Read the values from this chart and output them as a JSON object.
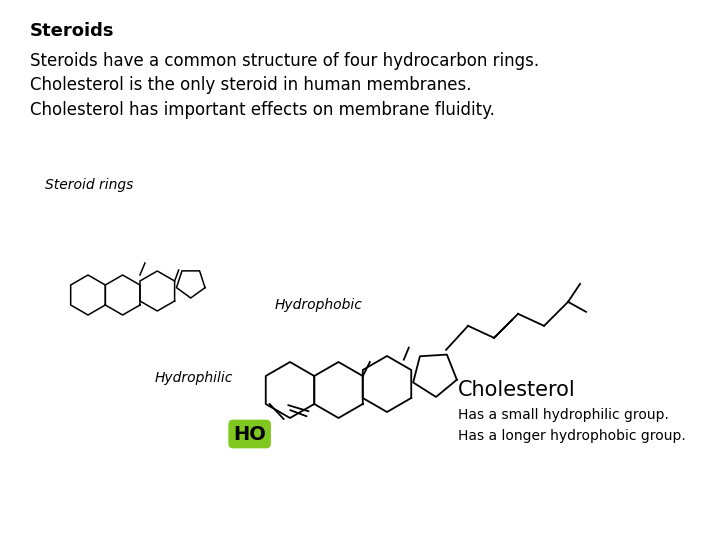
{
  "title": "Steroids",
  "body_text": "Steroids have a common structure of four hydrocarbon rings.\nCholesterol is the only steroid in human membranes.\nCholesterol has important effects on membrane fluidity.",
  "steroid_rings_label": "Steroid rings",
  "hydrophobic_label": "Hydrophobic",
  "hydrophilic_label": "Hydrophilic",
  "ho_label": "HO",
  "ho_bg_color": "#80c820",
  "cholesterol_title": "Cholesterol",
  "cholesterol_desc": "Has a small hydrophilic group.\nHas a longer hydrophobic group.",
  "bg_color": "#ffffff",
  "text_color": "#000000",
  "title_fontsize": 13,
  "body_fontsize": 12,
  "label_fontsize": 10,
  "small_label_fontsize": 10
}
